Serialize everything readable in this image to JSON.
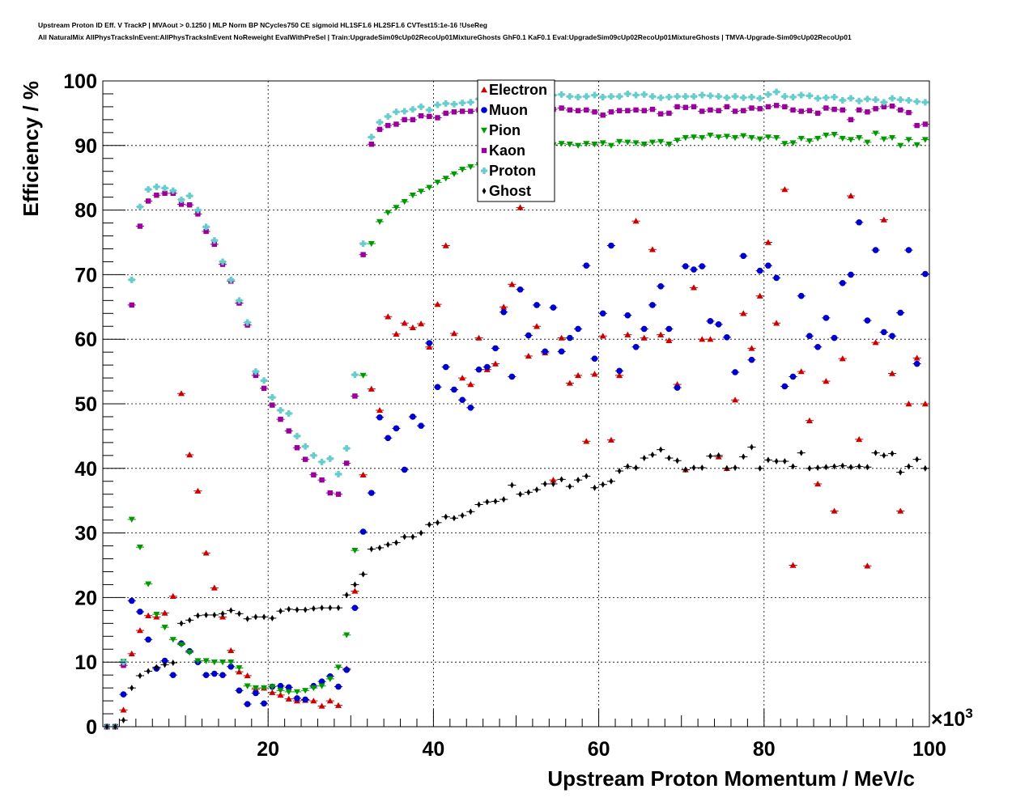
{
  "page": {
    "title_line1": "Upstream Proton ID Eff. V TrackP | MVAout > 0.1250 | MLP Norm BP NCycles750 CE sigmoid HL1SF1.6 HL2SF1.6 CVTest15:1e-16 !UseReg",
    "title_line2": "All NaturalMix AllPhysTracksInEvent:AllPhysTracksInEvent NoReweight EvalWithPreSel | Train:UpgradeSim09cUp02RecoUp01MixtureGhosts GhF0.1 KaF0.1 Eval:UpgradeSim09cUp02RecoUp01MixtureGhosts | TMVA-Upgrade-Sim09cUp02RecoUp01"
  },
  "chart_data": {
    "type": "scatter",
    "xlabel": "Upstream Proton Momentum / MeV/c",
    "ylabel": "Efficiency / %",
    "x_multiplier_label": "×10",
    "x_multiplier_exp": "3",
    "xlim": [
      0,
      100
    ],
    "ylim": [
      0,
      100
    ],
    "x_ticks": [
      20,
      40,
      60,
      80,
      100
    ],
    "y_ticks": [
      0,
      10,
      20,
      30,
      40,
      50,
      60,
      70,
      80,
      90,
      100
    ],
    "grid": true,
    "legend_position": "top-center",
    "series": [
      {
        "name": "Electron",
        "marker": "triangle-up",
        "color": "#cc0000",
        "x": [
          1,
          2,
          3,
          4,
          5,
          6,
          7,
          8,
          9,
          10,
          11,
          12,
          13,
          14,
          15,
          16,
          17,
          18,
          19,
          20,
          21,
          22,
          23,
          24,
          25,
          26,
          27,
          28,
          29,
          30,
          31,
          32,
          33,
          34,
          35,
          36,
          37,
          38,
          39,
          40,
          41,
          42,
          43,
          44,
          45,
          46,
          47,
          48,
          49,
          50,
          51,
          52,
          53,
          54,
          55,
          56,
          57,
          58,
          59,
          60,
          61,
          62,
          63,
          64,
          65,
          66,
          67,
          68,
          69,
          70,
          71,
          72,
          73,
          74,
          75,
          76,
          77,
          78,
          79,
          80,
          81,
          82,
          83,
          84,
          85,
          86,
          87,
          88,
          89,
          90,
          91,
          92,
          93,
          94,
          95,
          96,
          97,
          98,
          99,
          100
        ],
        "y": [
          0,
          0,
          2.6,
          11.3,
          14.9,
          17.2,
          17,
          17.6,
          20.2,
          51.6,
          42.1,
          36.5,
          26.9,
          21.5,
          17,
          11.8,
          8.5,
          7.9,
          5.8,
          6,
          5.3,
          4.9,
          4.3,
          4,
          4.1,
          4,
          3.2,
          4,
          3.3,
          9,
          21,
          39,
          52.3,
          49,
          63.5,
          60.8,
          62.5,
          61.8,
          62.4,
          58.8,
          65.4,
          74.5,
          60.9,
          54,
          53,
          60.2,
          55.3,
          56.2,
          65,
          68.5,
          80.4,
          57.4,
          62,
          57.9,
          38.2,
          60.2,
          53.2,
          54.4,
          44.2,
          54.6,
          60.5,
          44.4,
          54.4,
          60.7,
          78.3,
          60.2,
          73.9,
          60.7,
          59.8,
          53,
          39.8,
          68,
          60,
          60,
          41.8,
          40,
          50.6,
          64,
          58.6,
          66.7,
          75,
          62.5,
          83.2,
          25,
          55,
          47.4,
          37.6,
          53.5,
          33.4,
          57,
          82.2,
          44.5,
          24.9,
          59.5,
          78.5,
          54.7,
          33.4,
          50,
          57.1,
          50
        ]
      },
      {
        "name": "Muon",
        "marker": "circle",
        "color": "#0000cc",
        "x": [
          1,
          2,
          3,
          4,
          5,
          6,
          7,
          8,
          9,
          10,
          11,
          12,
          13,
          14,
          15,
          16,
          17,
          18,
          19,
          20,
          21,
          22,
          23,
          24,
          25,
          26,
          27,
          28,
          29,
          30,
          31,
          32,
          33,
          34,
          35,
          36,
          37,
          38,
          39,
          40,
          41,
          42,
          43,
          44,
          45,
          46,
          47,
          48,
          49,
          50,
          51,
          52,
          53,
          54,
          55,
          56,
          57,
          58,
          59,
          60,
          61,
          62,
          63,
          64,
          65,
          66,
          67,
          68,
          69,
          70,
          71,
          72,
          73,
          74,
          75,
          76,
          77,
          78,
          79,
          80,
          81,
          82,
          83,
          84,
          85,
          86,
          87,
          88,
          89,
          90,
          91,
          92,
          93,
          94,
          95,
          96,
          97,
          98,
          99,
          100
        ],
        "y": [
          0,
          0,
          5,
          19.5,
          17.8,
          13.5,
          9,
          10.2,
          8,
          12.9,
          11.7,
          10,
          8,
          8.2,
          8,
          9.3,
          5.6,
          3.5,
          5.2,
          3.6,
          6.2,
          6.3,
          6.1,
          4.4,
          4.2,
          6.3,
          7,
          7.8,
          6.2,
          8.8,
          18.4,
          30.2,
          36.2,
          47.9,
          44.7,
          46.2,
          39.8,
          48,
          46.6,
          59.4,
          52.6,
          55.7,
          52.2,
          50.6,
          49.4,
          55.3,
          55.7,
          58.6,
          64.2,
          54.2,
          67.7,
          60.6,
          65.3,
          58.1,
          64.9,
          58.1,
          60.2,
          61.6,
          71.4,
          57,
          64,
          74.5,
          55.1,
          63.7,
          58.8,
          61.6,
          65.3,
          68.2,
          61.6,
          52.5,
          71.3,
          70.8,
          71.3,
          62.8,
          62.3,
          60.3,
          54.9,
          72.9,
          56.8,
          70.6,
          71.4,
          69.5,
          52.7,
          54.2,
          66.7,
          60.5,
          58.8,
          63.3,
          60.2,
          68.7,
          70,
          78.1,
          62.9,
          73.8,
          61.1,
          60.5,
          64.1,
          73.8,
          56.2,
          70.1
        ]
      },
      {
        "name": "Pion",
        "marker": "triangle-down",
        "color": "#009900",
        "x": [
          1,
          2,
          3,
          4,
          5,
          6,
          7,
          8,
          9,
          10,
          11,
          12,
          13,
          14,
          15,
          16,
          17,
          18,
          19,
          20,
          21,
          22,
          23,
          24,
          25,
          26,
          27,
          28,
          29,
          30,
          31,
          32,
          33,
          34,
          35,
          36,
          37,
          38,
          39,
          40,
          41,
          42,
          43,
          44,
          45,
          46,
          47,
          48,
          49,
          50,
          51,
          52,
          53,
          54,
          55,
          56,
          57,
          58,
          59,
          60,
          61,
          62,
          63,
          64,
          65,
          66,
          67,
          68,
          69,
          70,
          71,
          72,
          73,
          74,
          75,
          76,
          77,
          78,
          79,
          80,
          81,
          82,
          83,
          84,
          85,
          86,
          87,
          88,
          89,
          90,
          91,
          92,
          93,
          94,
          95,
          96,
          97,
          98,
          99,
          100
        ],
        "y": [
          0,
          0,
          10.1,
          32.1,
          27.8,
          22.1,
          17.4,
          15.4,
          13.5,
          12.7,
          11.5,
          10.2,
          10.2,
          10,
          10,
          10,
          9.1,
          6.3,
          6,
          6,
          6.2,
          5.6,
          5.4,
          5.4,
          5.6,
          6,
          6.3,
          7.4,
          9.2,
          14.2,
          27.3,
          54.4,
          74.8,
          78.2,
          79.6,
          80.4,
          81.3,
          82.3,
          82.9,
          83.5,
          84.3,
          84.9,
          85.6,
          86.3,
          86.7,
          87,
          87.6,
          88,
          88.4,
          88.9,
          89.3,
          89.5,
          89.6,
          89.9,
          90.1,
          90.3,
          90.2,
          90,
          90.3,
          90.2,
          90.4,
          90,
          90.6,
          90.5,
          90.4,
          90.2,
          90.5,
          90.6,
          90.2,
          90.8,
          91.2,
          91.3,
          91.2,
          91.6,
          91.3,
          91.4,
          91.2,
          91.5,
          91.2,
          91,
          91.3,
          91.2,
          90.3,
          90.4,
          91.1,
          90.7,
          91.1,
          91.6,
          91.7,
          91.1,
          90.9,
          91.2,
          90.5,
          91.9,
          91,
          91.2,
          90,
          90.9,
          90.1,
          90.9
        ]
      },
      {
        "name": "Kaon",
        "marker": "square",
        "color": "#990099",
        "x": [
          1,
          2,
          3,
          4,
          5,
          6,
          7,
          8,
          9,
          10,
          11,
          12,
          13,
          14,
          15,
          16,
          17,
          18,
          19,
          20,
          21,
          22,
          23,
          24,
          25,
          26,
          27,
          28,
          29,
          30,
          31,
          32,
          33,
          34,
          35,
          36,
          37,
          38,
          39,
          40,
          41,
          42,
          43,
          44,
          45,
          46,
          47,
          48,
          49,
          50,
          51,
          52,
          53,
          54,
          55,
          56,
          57,
          58,
          59,
          60,
          61,
          62,
          63,
          64,
          65,
          66,
          67,
          68,
          69,
          70,
          71,
          72,
          73,
          74,
          75,
          76,
          77,
          78,
          79,
          80,
          81,
          82,
          83,
          84,
          85,
          86,
          87,
          88,
          89,
          90,
          91,
          92,
          93,
          94,
          95,
          96,
          97,
          98,
          99,
          100
        ],
        "y": [
          0,
          0,
          9.5,
          65.3,
          77.5,
          81.4,
          82.3,
          82.6,
          82.6,
          80.9,
          80.8,
          79.4,
          76.7,
          74.7,
          71.6,
          69,
          65.6,
          62.2,
          54.4,
          52.4,
          49.8,
          47.6,
          45.8,
          43.2,
          41.4,
          39,
          38.2,
          36.2,
          36,
          40.8,
          51.2,
          73.1,
          90.2,
          92.5,
          93.1,
          93.3,
          94,
          94,
          94.6,
          94.5,
          94.3,
          95,
          95.2,
          95.3,
          95.3,
          95.5,
          95.5,
          95.5,
          95.1,
          95.5,
          95.5,
          95.5,
          95.4,
          95.5,
          95.6,
          95.8,
          95.5,
          95.4,
          95.5,
          95.2,
          94.7,
          95.2,
          95.4,
          95.4,
          95.5,
          95.4,
          95.6,
          94.9,
          95,
          96,
          95.9,
          96,
          95.3,
          95.5,
          95.4,
          96,
          95.3,
          95.4,
          95.8,
          95.7,
          96,
          96.2,
          96,
          95.5,
          95.3,
          95.4,
          95,
          95.8,
          95.6,
          95.5,
          94,
          95.5,
          95.2,
          95.7,
          96,
          96.1,
          95.5,
          95.1,
          93.1,
          93.3
        ]
      },
      {
        "name": "Proton",
        "marker": "cross",
        "color": "#66cccc",
        "x": [
          1,
          2,
          3,
          4,
          5,
          6,
          7,
          8,
          9,
          10,
          11,
          12,
          13,
          14,
          15,
          16,
          17,
          18,
          19,
          20,
          21,
          22,
          23,
          24,
          25,
          26,
          27,
          28,
          29,
          30,
          31,
          32,
          33,
          34,
          35,
          36,
          37,
          38,
          39,
          40,
          41,
          42,
          43,
          44,
          45,
          46,
          47,
          48,
          49,
          50,
          51,
          52,
          53,
          54,
          55,
          56,
          57,
          58,
          59,
          60,
          61,
          62,
          63,
          64,
          65,
          66,
          67,
          68,
          69,
          70,
          71,
          72,
          73,
          74,
          75,
          76,
          77,
          78,
          79,
          80,
          81,
          82,
          83,
          84,
          85,
          86,
          87,
          88,
          89,
          90,
          91,
          92,
          93,
          94,
          95,
          96,
          97,
          98,
          99,
          100
        ],
        "y": [
          0,
          0,
          10,
          69.2,
          80.5,
          83.2,
          83.6,
          83.4,
          83,
          81.6,
          82.2,
          80,
          77.4,
          75.3,
          72,
          69.2,
          66,
          62.6,
          55,
          53.6,
          51,
          49,
          48.5,
          45,
          43.4,
          42,
          41,
          41.5,
          39.1,
          43.1,
          54.5,
          74.8,
          91.3,
          93.6,
          94.5,
          95.2,
          95.3,
          95.6,
          96,
          95.5,
          96.3,
          96.5,
          96.4,
          96.6,
          96.7,
          97.2,
          97.4,
          97.2,
          97.2,
          97.4,
          97.5,
          97.3,
          97.5,
          97.6,
          97.8,
          97.9,
          97.6,
          97.5,
          97.6,
          97.8,
          97.5,
          97.6,
          97.6,
          98,
          97.8,
          97.9,
          97.6,
          97.4,
          97.5,
          97.6,
          97.6,
          97.6,
          97.8,
          97.7,
          97.6,
          97.4,
          97.6,
          97.4,
          97.5,
          97.3,
          97.9,
          98.3,
          97.6,
          97.5,
          97.8,
          97.7,
          97.3,
          97.4,
          97.5,
          97,
          97.3,
          96.9,
          97.2,
          97.1,
          96.7,
          97.3,
          97.1,
          97,
          96.8,
          96.7
        ]
      },
      {
        "name": "Ghost",
        "marker": "diamond",
        "color": "#000000",
        "x": [
          1,
          2,
          3,
          4,
          5,
          6,
          7,
          8,
          9,
          10,
          11,
          12,
          13,
          14,
          15,
          16,
          17,
          18,
          19,
          20,
          21,
          22,
          23,
          24,
          25,
          26,
          27,
          28,
          29,
          30,
          31,
          32,
          33,
          34,
          35,
          36,
          37,
          38,
          39,
          40,
          41,
          42,
          43,
          44,
          45,
          46,
          47,
          48,
          49,
          50,
          51,
          52,
          53,
          54,
          55,
          56,
          57,
          58,
          59,
          60,
          61,
          62,
          63,
          64,
          65,
          66,
          67,
          68,
          69,
          70,
          71,
          72,
          73,
          74,
          75,
          76,
          77,
          78,
          79,
          80,
          81,
          82,
          83,
          84,
          85,
          86,
          87,
          88,
          89,
          90,
          91,
          92,
          93,
          94,
          95,
          96,
          97,
          98,
          99,
          100
        ],
        "y": [
          0,
          0,
          1,
          6,
          7.9,
          8.6,
          9.2,
          9.6,
          9.9,
          16,
          16.5,
          17.2,
          17.3,
          17.3,
          17.5,
          18,
          17.5,
          16.7,
          17,
          17,
          16.8,
          17.9,
          18.2,
          18.1,
          18.1,
          18.3,
          18.4,
          18.4,
          18.4,
          20.4,
          22,
          23.6,
          27.5,
          27.7,
          28.2,
          28.5,
          29.4,
          29.4,
          30,
          31.3,
          31.6,
          32.5,
          32.3,
          32.7,
          33.3,
          34.4,
          34.8,
          34.9,
          35.2,
          37.4,
          36,
          36.3,
          36.7,
          37.6,
          37.6,
          38.3,
          37.2,
          38.2,
          38.8,
          37,
          37.5,
          38,
          39.6,
          40.3,
          40.1,
          41.6,
          42.1,
          42.9,
          41.6,
          41.2,
          39.8,
          40.1,
          40.1,
          41.9,
          42,
          40,
          40.1,
          41.8,
          43.3,
          40,
          41.3,
          41.1,
          41.1,
          40.3,
          42.4,
          40,
          40.1,
          40.2,
          40.3,
          40.4,
          40.2,
          40.3,
          40.2,
          42.4,
          42,
          42.3,
          39.4,
          40.3,
          41.4,
          40
        ]
      }
    ]
  }
}
